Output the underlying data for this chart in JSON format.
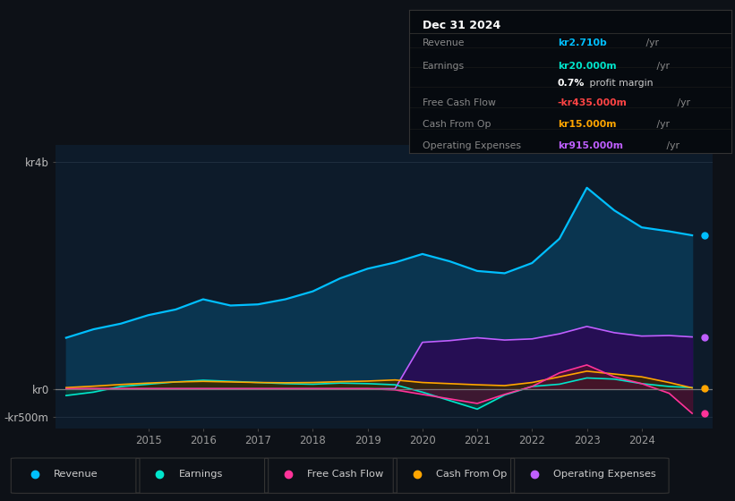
{
  "background_color": "#0d1117",
  "plot_bg_color": "#0d1b2a",
  "years": [
    2013.5,
    2014.0,
    2014.5,
    2015.0,
    2015.5,
    2016.0,
    2016.5,
    2017.0,
    2017.5,
    2018.0,
    2018.5,
    2019.0,
    2019.5,
    2020.0,
    2020.5,
    2021.0,
    2021.5,
    2022.0,
    2022.5,
    2023.0,
    2023.5,
    2024.0,
    2024.5,
    2024.92
  ],
  "revenue": [
    900,
    1050,
    1150,
    1300,
    1400,
    1580,
    1470,
    1490,
    1580,
    1720,
    1950,
    2120,
    2230,
    2380,
    2250,
    2080,
    2040,
    2220,
    2650,
    3550,
    3150,
    2850,
    2780,
    2710
  ],
  "earnings": [
    -120,
    -60,
    40,
    80,
    120,
    150,
    130,
    110,
    90,
    80,
    100,
    90,
    70,
    -60,
    -210,
    -360,
    -110,
    40,
    80,
    190,
    170,
    90,
    40,
    20
  ],
  "free_cash_flow": [
    0,
    0,
    0,
    0,
    0,
    0,
    0,
    0,
    0,
    0,
    0,
    0,
    -20,
    -100,
    -180,
    -260,
    -100,
    40,
    280,
    420,
    210,
    90,
    -80,
    -435
  ],
  "cash_from_op": [
    20,
    45,
    75,
    100,
    120,
    130,
    120,
    110,
    105,
    110,
    125,
    135,
    155,
    110,
    90,
    70,
    55,
    110,
    210,
    310,
    260,
    210,
    110,
    15
  ],
  "operating_expenses": [
    0,
    0,
    0,
    0,
    0,
    0,
    0,
    0,
    0,
    0,
    0,
    0,
    0,
    820,
    850,
    900,
    860,
    880,
    970,
    1100,
    990,
    930,
    940,
    915
  ],
  "revenue_line_color": "#00bfff",
  "revenue_fill_color": "#0a3550",
  "earnings_line_color": "#00e5cc",
  "earnings_fill_color": "#0a4038",
  "fcf_line_color": "#ff3399",
  "fcf_fill_color": "#4a1030",
  "cashop_line_color": "#ffa500",
  "cashop_fill_color": "#3a2a00",
  "opex_line_color": "#bf5fff",
  "opex_fill_color": "#2a0a55",
  "ylim": [
    -700,
    4300
  ],
  "xlim_left": 2013.3,
  "xlim_right": 2025.3,
  "ytick_vals": [
    4000,
    0,
    -500
  ],
  "ytick_labels": [
    "kr4b",
    "kr0",
    "-kr500m"
  ],
  "xtick_vals": [
    2015,
    2016,
    2017,
    2018,
    2019,
    2020,
    2021,
    2022,
    2023,
    2024
  ],
  "legend_items": [
    {
      "label": "Revenue",
      "color": "#00bfff"
    },
    {
      "label": "Earnings",
      "color": "#00e5cc"
    },
    {
      "label": "Free Cash Flow",
      "color": "#ff3399"
    },
    {
      "label": "Cash From Op",
      "color": "#ffa500"
    },
    {
      "label": "Operating Expenses",
      "color": "#bf5fff"
    }
  ],
  "info_box": {
    "title": "Dec 31 2024",
    "rows": [
      {
        "label": "Revenue",
        "value": "kr2.710b",
        "suffix": " /yr",
        "value_color": "#00bfff"
      },
      {
        "label": "Earnings",
        "value": "kr20.000m",
        "suffix": " /yr",
        "value_color": "#00e5cc"
      },
      {
        "label": "",
        "value": "0.7%",
        "suffix": " profit margin",
        "value_color": "#ffffff"
      },
      {
        "label": "Free Cash Flow",
        "value": "-kr435.000m",
        "suffix": " /yr",
        "value_color": "#ff4444"
      },
      {
        "label": "Cash From Op",
        "value": "kr15.000m",
        "suffix": " /yr",
        "value_color": "#ffa500"
      },
      {
        "label": "Operating Expenses",
        "value": "kr915.000m",
        "suffix": " /yr",
        "value_color": "#bf5fff"
      }
    ]
  }
}
